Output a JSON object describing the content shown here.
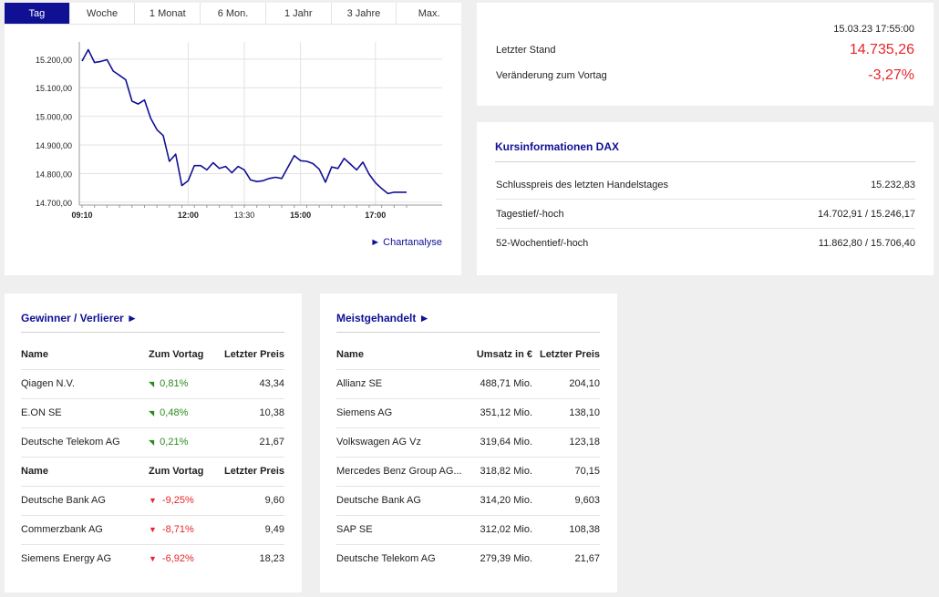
{
  "tabs": [
    "Tag",
    "Woche",
    "1 Monat",
    "6 Mon.",
    "1 Jahr",
    "3 Jahre",
    "Max."
  ],
  "chart_link": "► Chartanalyse",
  "chart_data": {
    "type": "line",
    "x": [
      "09:10",
      "09:20",
      "09:30",
      "09:40",
      "09:50",
      "10:00",
      "10:10",
      "10:20",
      "10:30",
      "10:40",
      "10:50",
      "11:00",
      "11:10",
      "11:20",
      "11:30",
      "11:40",
      "11:50",
      "12:00",
      "12:10",
      "12:20",
      "12:30",
      "12:40",
      "12:50",
      "13:00",
      "13:10",
      "13:20",
      "13:30",
      "13:40",
      "13:50",
      "14:00",
      "14:10",
      "14:20",
      "14:30",
      "14:40",
      "14:50",
      "15:00",
      "15:10",
      "15:20",
      "15:30",
      "15:40",
      "15:50",
      "16:00",
      "16:10",
      "16:20",
      "16:30",
      "16:40",
      "16:50",
      "17:00",
      "17:10",
      "17:20",
      "17:30",
      "17:40",
      "17:50"
    ],
    "values": [
      15193,
      15233,
      15188,
      15192,
      15198,
      15158,
      15143,
      15128,
      15053,
      15043,
      15057,
      14993,
      14953,
      14933,
      14843,
      14868,
      14758,
      14775,
      14828,
      14828,
      14813,
      14838,
      14818,
      14825,
      14803,
      14825,
      14813,
      14778,
      14772,
      14775,
      14783,
      14787,
      14783,
      14823,
      14863,
      14845,
      14843,
      14835,
      14815,
      14770,
      14823,
      14818,
      14853,
      14833,
      14813,
      14840,
      14798,
      14768,
      14748,
      14730,
      14735,
      14735,
      14735
    ],
    "x_ticks": [
      "09:10",
      "12:00",
      "13:30",
      "15:00",
      "17:00"
    ],
    "y_ticks": [
      "15.200,00",
      "15.100,00",
      "15.000,00",
      "14.900,00",
      "14.800,00",
      "14.700,00"
    ],
    "ylim": [
      14690,
      15260
    ],
    "line_color": "#101095"
  },
  "quote": {
    "timestamp": "15.03.23 17:55:00",
    "last_label": "Letzter Stand",
    "last_value": "14.735,26",
    "change_label": "Veränderung zum Vortag",
    "change_value": "-3,27%"
  },
  "info": {
    "title": "Kursinformationen DAX",
    "rows": [
      {
        "label": "Schlusspreis des letzten Handelstages",
        "value": "15.232,83"
      },
      {
        "label": "Tagestief/-hoch",
        "value": "14.702,91 / 15.246,17"
      },
      {
        "label": "52-Wochentief/-hoch",
        "value": "11.862,80 / 15.706,40"
      }
    ]
  },
  "gainers_losers": {
    "title": "Gewinner / Verlierer ►",
    "headers": [
      "Name",
      "Zum Vortag",
      "Letzter Preis"
    ],
    "gainers": [
      {
        "name": "Qiagen N.V.",
        "change": "0,81%",
        "price": "43,34"
      },
      {
        "name": "E.ON SE",
        "change": "0,48%",
        "price": "10,38"
      },
      {
        "name": "Deutsche Telekom AG",
        "change": "0,21%",
        "price": "21,67"
      }
    ],
    "losers": [
      {
        "name": "Deutsche Bank AG",
        "change": "-9,25%",
        "price": "9,60"
      },
      {
        "name": "Commerzbank AG",
        "change": "-8,71%",
        "price": "9,49"
      },
      {
        "name": "Siemens Energy AG",
        "change": "-6,92%",
        "price": "18,23"
      }
    ]
  },
  "most_traded": {
    "title": "Meistgehandelt ►",
    "headers": [
      "Name",
      "Umsatz in €",
      "Letzter Preis"
    ],
    "rows": [
      {
        "name": "Allianz SE",
        "volume": "488,71 Mio.",
        "price": "204,10"
      },
      {
        "name": "Siemens AG",
        "volume": "351,12 Mio.",
        "price": "138,10"
      },
      {
        "name": "Volkswagen AG Vz",
        "volume": "319,64 Mio.",
        "price": "123,18"
      },
      {
        "name": "Mercedes Benz Group AG...",
        "volume": "318,82 Mio.",
        "price": "70,15"
      },
      {
        "name": "Deutsche Bank AG",
        "volume": "314,20 Mio.",
        "price": "9,603"
      },
      {
        "name": "SAP SE",
        "volume": "312,02 Mio.",
        "price": "108,38"
      },
      {
        "name": "Deutsche Telekom AG",
        "volume": "279,39 Mio.",
        "price": "21,67"
      }
    ]
  }
}
